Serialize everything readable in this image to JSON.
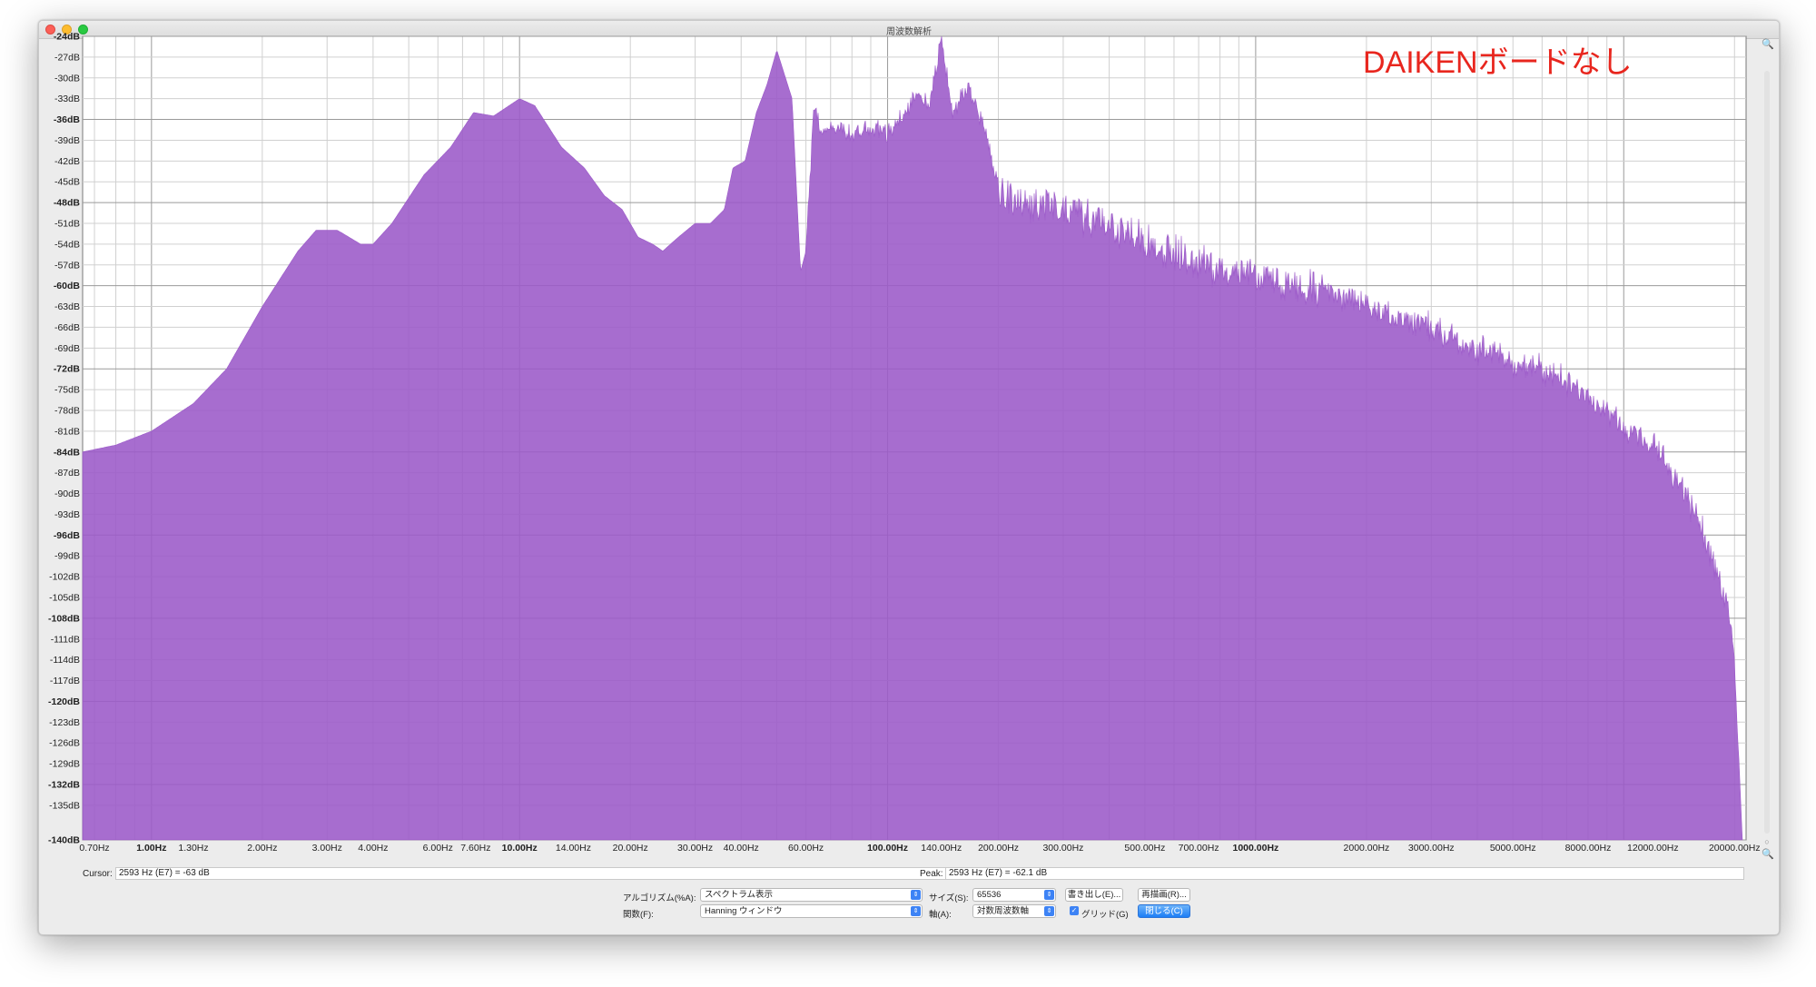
{
  "window": {
    "title": "周波数解析"
  },
  "annotation": "DAIKENボードなし",
  "chart_data": {
    "type": "area",
    "color": "#9b59c8",
    "x_scale": "log",
    "xlim": [
      0.65,
      21500
    ],
    "ylim": [
      -140,
      -24
    ],
    "grid": true,
    "y_ticks": [
      "-24dB",
      "-27dB",
      "-30dB",
      "-33dB",
      "-36dB",
      "-39dB",
      "-42dB",
      "-45dB",
      "-48dB",
      "-51dB",
      "-54dB",
      "-57dB",
      "-60dB",
      "-63dB",
      "-66dB",
      "-69dB",
      "-72dB",
      "-75dB",
      "-78dB",
      "-81dB",
      "-84dB",
      "-87dB",
      "-90dB",
      "-93dB",
      "-96dB",
      "-99dB",
      "-102dB",
      "-105dB",
      "-108dB",
      "-111dB",
      "-114dB",
      "-117dB",
      "-120dB",
      "-123dB",
      "-126dB",
      "-129dB",
      "-132dB",
      "-135dB",
      "-140dB"
    ],
    "y_tick_values": [
      -24,
      -27,
      -30,
      -33,
      -36,
      -39,
      -42,
      -45,
      -48,
      -51,
      -54,
      -57,
      -60,
      -63,
      -66,
      -69,
      -72,
      -75,
      -78,
      -81,
      -84,
      -87,
      -90,
      -93,
      -96,
      -99,
      -102,
      -105,
      -108,
      -111,
      -114,
      -117,
      -120,
      -123,
      -126,
      -129,
      -132,
      -135,
      -140
    ],
    "y_bold_values": [
      -24,
      -36,
      -48,
      -60,
      -72,
      -84,
      -96,
      -108,
      -120,
      -132,
      -140
    ],
    "x_ticks": [
      {
        "label": "0.70Hz",
        "value": 0.7
      },
      {
        "label": "1.00Hz",
        "value": 1,
        "bold": true
      },
      {
        "label": "1.30Hz",
        "value": 1.3
      },
      {
        "label": "2.00Hz",
        "value": 2
      },
      {
        "label": "3.00Hz",
        "value": 3
      },
      {
        "label": "4.00Hz",
        "value": 4
      },
      {
        "label": "6.00Hz",
        "value": 6
      },
      {
        "label": "7.60Hz",
        "value": 7.6
      },
      {
        "label": "10.00Hz",
        "value": 10,
        "bold": true
      },
      {
        "label": "14.00Hz",
        "value": 14
      },
      {
        "label": "20.00Hz",
        "value": 20
      },
      {
        "label": "30.00Hz",
        "value": 30
      },
      {
        "label": "40.00Hz",
        "value": 40
      },
      {
        "label": "60.00Hz",
        "value": 60
      },
      {
        "label": "100.00Hz",
        "value": 100,
        "bold": true
      },
      {
        "label": "140.00Hz",
        "value": 140
      },
      {
        "label": "200.00Hz",
        "value": 200
      },
      {
        "label": "300.00Hz",
        "value": 300
      },
      {
        "label": "500.00Hz",
        "value": 500
      },
      {
        "label": "700.00Hz",
        "value": 700
      },
      {
        "label": "1000.00Hz",
        "value": 1000,
        "bold": true
      },
      {
        "label": "2000.00Hz",
        "value": 2000
      },
      {
        "label": "3000.00Hz",
        "value": 3000
      },
      {
        "label": "5000.00Hz",
        "value": 5000
      },
      {
        "label": "8000.00Hz",
        "value": 8000
      },
      {
        "label": "12000.00Hz",
        "value": 12000
      },
      {
        "label": "20000.00Hz",
        "value": 20000
      }
    ],
    "envelope": [
      [
        0.65,
        -84
      ],
      [
        0.8,
        -83
      ],
      [
        1.0,
        -81
      ],
      [
        1.3,
        -77
      ],
      [
        1.6,
        -72
      ],
      [
        2.0,
        -63
      ],
      [
        2.5,
        -55
      ],
      [
        2.8,
        -52
      ],
      [
        3.2,
        -52
      ],
      [
        3.7,
        -54
      ],
      [
        4.0,
        -54
      ],
      [
        4.5,
        -51
      ],
      [
        5.5,
        -44
      ],
      [
        6.5,
        -40
      ],
      [
        7.5,
        -35
      ],
      [
        8.5,
        -35.5
      ],
      [
        10.0,
        -33
      ],
      [
        11.0,
        -34
      ],
      [
        13.0,
        -40
      ],
      [
        15.0,
        -43
      ],
      [
        17.0,
        -47
      ],
      [
        19.0,
        -49
      ],
      [
        21.0,
        -53
      ],
      [
        23.0,
        -54
      ],
      [
        24.5,
        -55
      ],
      [
        27.0,
        -53
      ],
      [
        30.0,
        -51
      ],
      [
        33.0,
        -51
      ],
      [
        36.0,
        -49
      ],
      [
        38.0,
        -43
      ],
      [
        41.0,
        -42
      ],
      [
        44.0,
        -35
      ],
      [
        47.0,
        -31
      ],
      [
        50.0,
        -26
      ],
      [
        55.0,
        -33
      ],
      [
        58.0,
        -58
      ],
      [
        60.0,
        -55
      ],
      [
        63.0,
        -34
      ],
      [
        66.0,
        -38
      ],
      [
        72.0,
        -37
      ],
      [
        80.0,
        -38
      ],
      [
        90.0,
        -37
      ],
      [
        100.0,
        -38
      ],
      [
        110.0,
        -35
      ],
      [
        120.0,
        -32
      ],
      [
        130.0,
        -34
      ],
      [
        140.0,
        -24
      ],
      [
        150.0,
        -35
      ],
      [
        165.0,
        -31
      ],
      [
        180.0,
        -36
      ],
      [
        200.0,
        -45
      ],
      [
        240.0,
        -47
      ],
      [
        300.0,
        -47
      ],
      [
        400.0,
        -50
      ],
      [
        500.0,
        -52
      ],
      [
        700.0,
        -55
      ],
      [
        1000.0,
        -57
      ],
      [
        1500.0,
        -59
      ],
      [
        2000.0,
        -62
      ],
      [
        3000.0,
        -65
      ],
      [
        4000.0,
        -68
      ],
      [
        5000.0,
        -70
      ],
      [
        6000.0,
        -71
      ],
      [
        8000.0,
        -75
      ],
      [
        10000.0,
        -79
      ],
      [
        12000.0,
        -82
      ],
      [
        14000.0,
        -87
      ],
      [
        16000.0,
        -93
      ],
      [
        18000.0,
        -101
      ],
      [
        19500.0,
        -108
      ],
      [
        20000.0,
        -113
      ],
      [
        20500.0,
        -127
      ],
      [
        21000.0,
        -140
      ]
    ]
  },
  "status": {
    "cursor_label": "Cursor:",
    "cursor_value": "2593 Hz (E7) = -63 dB",
    "peak_label": "Peak:",
    "peak_value": "2593 Hz (E7) = -62.1 dB"
  },
  "controls": {
    "algorithm_label": "アルゴリズム(%A):",
    "algorithm_value": "スペクトラム表示",
    "size_label": "サイズ(S):",
    "size_value": "65536",
    "export_label": "書き出し(E)...",
    "replot_label": "再描画(R)...",
    "function_label": "関数(F):",
    "function_value": "Hanning ウィンドウ",
    "axis_label": "軸(A):",
    "axis_value": "対数周波数軸",
    "grid_label": "グリッド(G)",
    "close_label": "閉じる(C)"
  }
}
